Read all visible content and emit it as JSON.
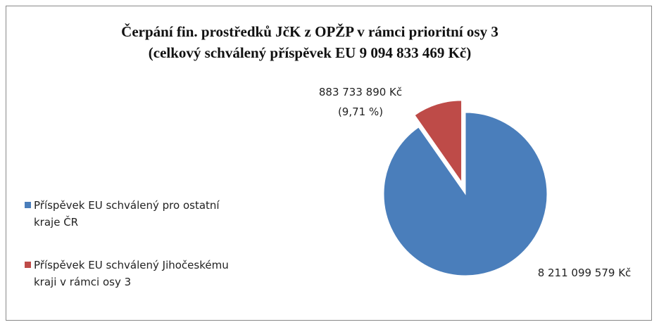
{
  "chart_data": {
    "type": "pie",
    "title": "Čerpání fin. prostředků JčK z OPŽP v rámci prioritní osy 3",
    "subtitle": "(celkový schválený příspěvek EU 9 094 833 469 Kč)",
    "categories": [
      "Příspěvek EU schválený pro ostatní kraje ČR",
      "Příspěvek EU schválený Jihočeskému kraji v rámci osy 3"
    ],
    "values": [
      8211099579,
      883733890
    ],
    "value_labels": [
      "8 211 099 579 Kč",
      "883 733 890 Kč"
    ],
    "percent_labels": [
      null,
      "(9,71 %)"
    ],
    "colors": [
      "#4a7ebb",
      "#be4b48"
    ],
    "legend": "left"
  }
}
